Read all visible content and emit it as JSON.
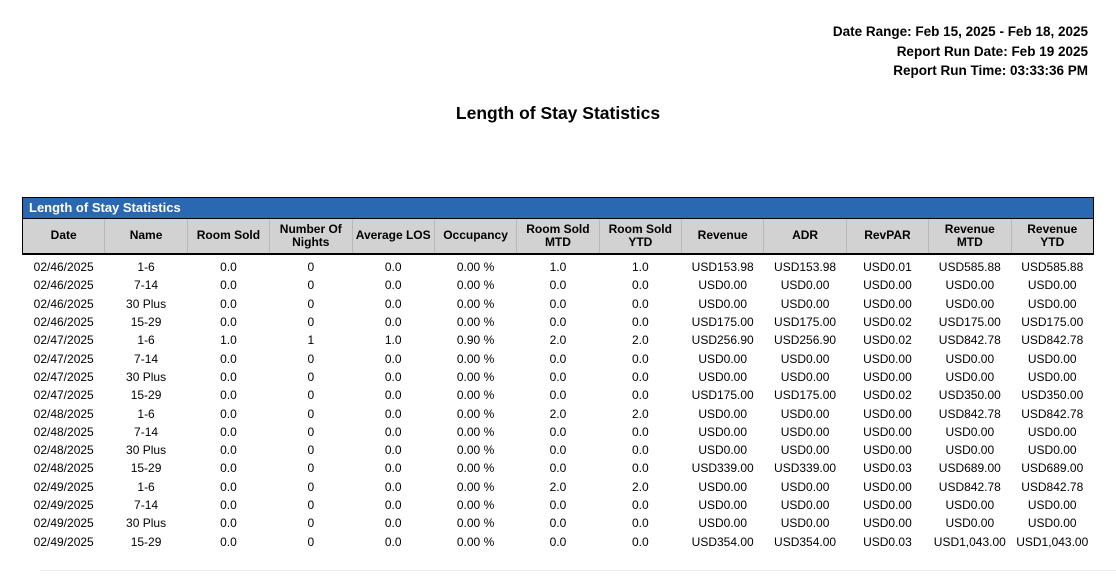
{
  "meta": {
    "date_range": "Date Range: Feb 15, 2025 - Feb 18, 2025",
    "run_date": "Report Run Date: Feb 19 2025",
    "run_time": "Report Run Time: 03:33:36 PM"
  },
  "page_title": "Length of Stay Statistics",
  "table": {
    "title": "Length of Stay Statistics",
    "columns": [
      "Date",
      "Name",
      "Room Sold",
      "Number Of Nights",
      "Average LOS",
      "Occupancy",
      "Room Sold MTD",
      "Room Sold YTD",
      "Revenue",
      "ADR",
      "RevPAR",
      "Revenue MTD",
      "Revenue YTD"
    ],
    "rows": [
      [
        "02/46/2025",
        "1-6",
        "0.0",
        "0",
        "0.0",
        "0.00 %",
        "1.0",
        "1.0",
        "USD153.98",
        "USD153.98",
        "USD0.01",
        "USD585.88",
        "USD585.88"
      ],
      [
        "02/46/2025",
        "7-14",
        "0.0",
        "0",
        "0.0",
        "0.00 %",
        "0.0",
        "0.0",
        "USD0.00",
        "USD0.00",
        "USD0.00",
        "USD0.00",
        "USD0.00"
      ],
      [
        "02/46/2025",
        "30 Plus",
        "0.0",
        "0",
        "0.0",
        "0.00 %",
        "0.0",
        "0.0",
        "USD0.00",
        "USD0.00",
        "USD0.00",
        "USD0.00",
        "USD0.00"
      ],
      [
        "02/46/2025",
        "15-29",
        "0.0",
        "0",
        "0.0",
        "0.00 %",
        "0.0",
        "0.0",
        "USD175.00",
        "USD175.00",
        "USD0.02",
        "USD175.00",
        "USD175.00"
      ],
      [
        "02/47/2025",
        "1-6",
        "1.0",
        "1",
        "1.0",
        "0.90 %",
        "2.0",
        "2.0",
        "USD256.90",
        "USD256.90",
        "USD0.02",
        "USD842.78",
        "USD842.78"
      ],
      [
        "02/47/2025",
        "7-14",
        "0.0",
        "0",
        "0.0",
        "0.00 %",
        "0.0",
        "0.0",
        "USD0.00",
        "USD0.00",
        "USD0.00",
        "USD0.00",
        "USD0.00"
      ],
      [
        "02/47/2025",
        "30 Plus",
        "0.0",
        "0",
        "0.0",
        "0.00 %",
        "0.0",
        "0.0",
        "USD0.00",
        "USD0.00",
        "USD0.00",
        "USD0.00",
        "USD0.00"
      ],
      [
        "02/47/2025",
        "15-29",
        "0.0",
        "0",
        "0.0",
        "0.00 %",
        "0.0",
        "0.0",
        "USD175.00",
        "USD175.00",
        "USD0.02",
        "USD350.00",
        "USD350.00"
      ],
      [
        "02/48/2025",
        "1-6",
        "0.0",
        "0",
        "0.0",
        "0.00 %",
        "2.0",
        "2.0",
        "USD0.00",
        "USD0.00",
        "USD0.00",
        "USD842.78",
        "USD842.78"
      ],
      [
        "02/48/2025",
        "7-14",
        "0.0",
        "0",
        "0.0",
        "0.00 %",
        "0.0",
        "0.0",
        "USD0.00",
        "USD0.00",
        "USD0.00",
        "USD0.00",
        "USD0.00"
      ],
      [
        "02/48/2025",
        "30 Plus",
        "0.0",
        "0",
        "0.0",
        "0.00 %",
        "0.0",
        "0.0",
        "USD0.00",
        "USD0.00",
        "USD0.00",
        "USD0.00",
        "USD0.00"
      ],
      [
        "02/48/2025",
        "15-29",
        "0.0",
        "0",
        "0.0",
        "0.00 %",
        "0.0",
        "0.0",
        "USD339.00",
        "USD339.00",
        "USD0.03",
        "USD689.00",
        "USD689.00"
      ],
      [
        "02/49/2025",
        "1-6",
        "0.0",
        "0",
        "0.0",
        "0.00 %",
        "2.0",
        "2.0",
        "USD0.00",
        "USD0.00",
        "USD0.00",
        "USD842.78",
        "USD842.78"
      ],
      [
        "02/49/2025",
        "7-14",
        "0.0",
        "0",
        "0.0",
        "0.00 %",
        "0.0",
        "0.0",
        "USD0.00",
        "USD0.00",
        "USD0.00",
        "USD0.00",
        "USD0.00"
      ],
      [
        "02/49/2025",
        "30 Plus",
        "0.0",
        "0",
        "0.0",
        "0.00 %",
        "0.0",
        "0.0",
        "USD0.00",
        "USD0.00",
        "USD0.00",
        "USD0.00",
        "USD0.00"
      ],
      [
        "02/49/2025",
        "15-29",
        "0.0",
        "0",
        "0.0",
        "0.00 %",
        "0.0",
        "0.0",
        "USD354.00",
        "USD354.00",
        "USD0.03",
        "USD1,043.00",
        "USD1,043.00"
      ]
    ]
  },
  "colors": {
    "table_title_bar": "#2b68b2",
    "column_header_bg": "#d2d2d2",
    "border": "#000000"
  }
}
